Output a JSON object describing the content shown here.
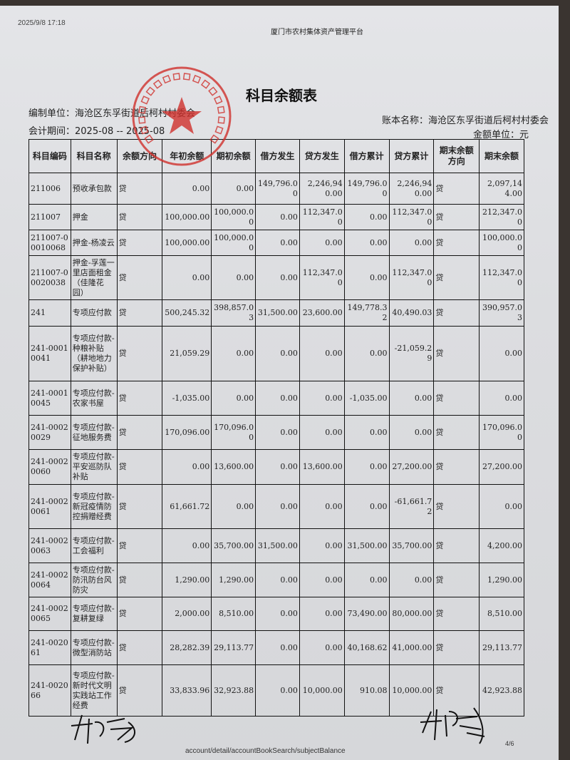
{
  "header": {
    "datetime": "2025/9/8 17:18",
    "platform": "厦门市农村集体资产管理平台",
    "title": "科目余额表",
    "org_label": "编制单位：海沧区东孚街道后柯村村委会",
    "period_label": "会计期间：2025-08 -- 2025-08",
    "book_label": "账本名称：海沧区东孚街道后柯村村委会",
    "unit_label": "金额单位：元"
  },
  "stamp": {
    "text": "厦门市海沧区东孚街道后柯村村民委员会",
    "color": "#d0312d"
  },
  "table": {
    "columns": [
      "科目编码",
      "科目名称",
      "余额方向",
      "年初余额",
      "期初余额",
      "借方发生",
      "贷方发生",
      "借方累计",
      "贷方累计",
      "期末余额方向",
      "期末余额"
    ],
    "rows": [
      [
        "211006",
        "预收承包款",
        "贷",
        "0.00",
        "0.00",
        "149,796.00",
        "2,246,940.00",
        "149,796.00",
        "2,246,940.00",
        "贷",
        "2,097,144.00"
      ],
      [
        "211007",
        "押金",
        "贷",
        "100,000.00",
        "100,000.00",
        "0.00",
        "112,347.00",
        "0.00",
        "112,347.00",
        "贷",
        "212,347.00"
      ],
      [
        "211007-00010068",
        "押金-杨凌云",
        "贷",
        "100,000.00",
        "100,000.00",
        "0.00",
        "0.00",
        "0.00",
        "0.00",
        "贷",
        "100,000.00"
      ],
      [
        "211007-00020038",
        "押金-孚莲一里店面租金（佳隆花园）",
        "贷",
        "0.00",
        "0.00",
        "0.00",
        "112,347.00",
        "0.00",
        "112,347.00",
        "贷",
        "112,347.00"
      ],
      [
        "241",
        "专项应付款",
        "贷",
        "500,245.32",
        "398,857.03",
        "31,500.00",
        "23,600.00",
        "149,778.32",
        "40,490.03",
        "贷",
        "390,957.03"
      ],
      [
        "241-00010041",
        "专项应付款-种粮补贴（耕地地力保护补贴）",
        "贷",
        "21,059.29",
        "0.00",
        "0.00",
        "0.00",
        "0.00",
        "-21,059.29",
        "贷",
        "0.00"
      ],
      [
        "241-00010045",
        "专项应付款-农家书屋",
        "贷",
        "-1,035.00",
        "0.00",
        "0.00",
        "0.00",
        "-1,035.00",
        "0.00",
        "贷",
        "0.00"
      ],
      [
        "241-00020029",
        "专项应付款-征地服务费",
        "贷",
        "170,096.00",
        "170,096.00",
        "0.00",
        "0.00",
        "0.00",
        "0.00",
        "贷",
        "170,096.00"
      ],
      [
        "241-00020060",
        "专项应付款-平安巡防队补贴",
        "贷",
        "0.00",
        "13,600.00",
        "0.00",
        "13,600.00",
        "0.00",
        "27,200.00",
        "贷",
        "27,200.00"
      ],
      [
        "241-00020061",
        "专项应付款-新冠疫情防控捐赠经费",
        "贷",
        "61,661.72",
        "0.00",
        "0.00",
        "0.00",
        "0.00",
        "-61,661.72",
        "贷",
        "0.00"
      ],
      [
        "241-00020063",
        "专项应付款-工会福利",
        "贷",
        "0.00",
        "35,700.00",
        "31,500.00",
        "0.00",
        "31,500.00",
        "35,700.00",
        "贷",
        "4,200.00"
      ],
      [
        "241-00020064",
        "专项应付款-防汛防台风防灾",
        "贷",
        "1,290.00",
        "1,290.00",
        "0.00",
        "0.00",
        "0.00",
        "0.00",
        "贷",
        "1,290.00"
      ],
      [
        "241-00020065",
        "专项应付款-复耕复绿",
        "贷",
        "2,000.00",
        "8,510.00",
        "0.00",
        "0.00",
        "73,490.00",
        "80,000.00",
        "贷",
        "8,510.00"
      ],
      [
        "241-002061",
        "专项应付款-微型消防站",
        "贷",
        "28,282.39",
        "29,113.77",
        "0.00",
        "0.00",
        "40,168.62",
        "41,000.00",
        "贷",
        "29,113.77"
      ],
      [
        "241-002066",
        "专项应付款-新时代文明实践站工作经费",
        "贷",
        "33,833.96",
        "32,923.88",
        "0.00",
        "10,000.00",
        "910.08",
        "10,000.00",
        "贷",
        "42,923.88"
      ]
    ]
  },
  "footer": {
    "url_fragment": "account/detail/accountBookSearch/subjectBalance",
    "page": "4/6"
  }
}
